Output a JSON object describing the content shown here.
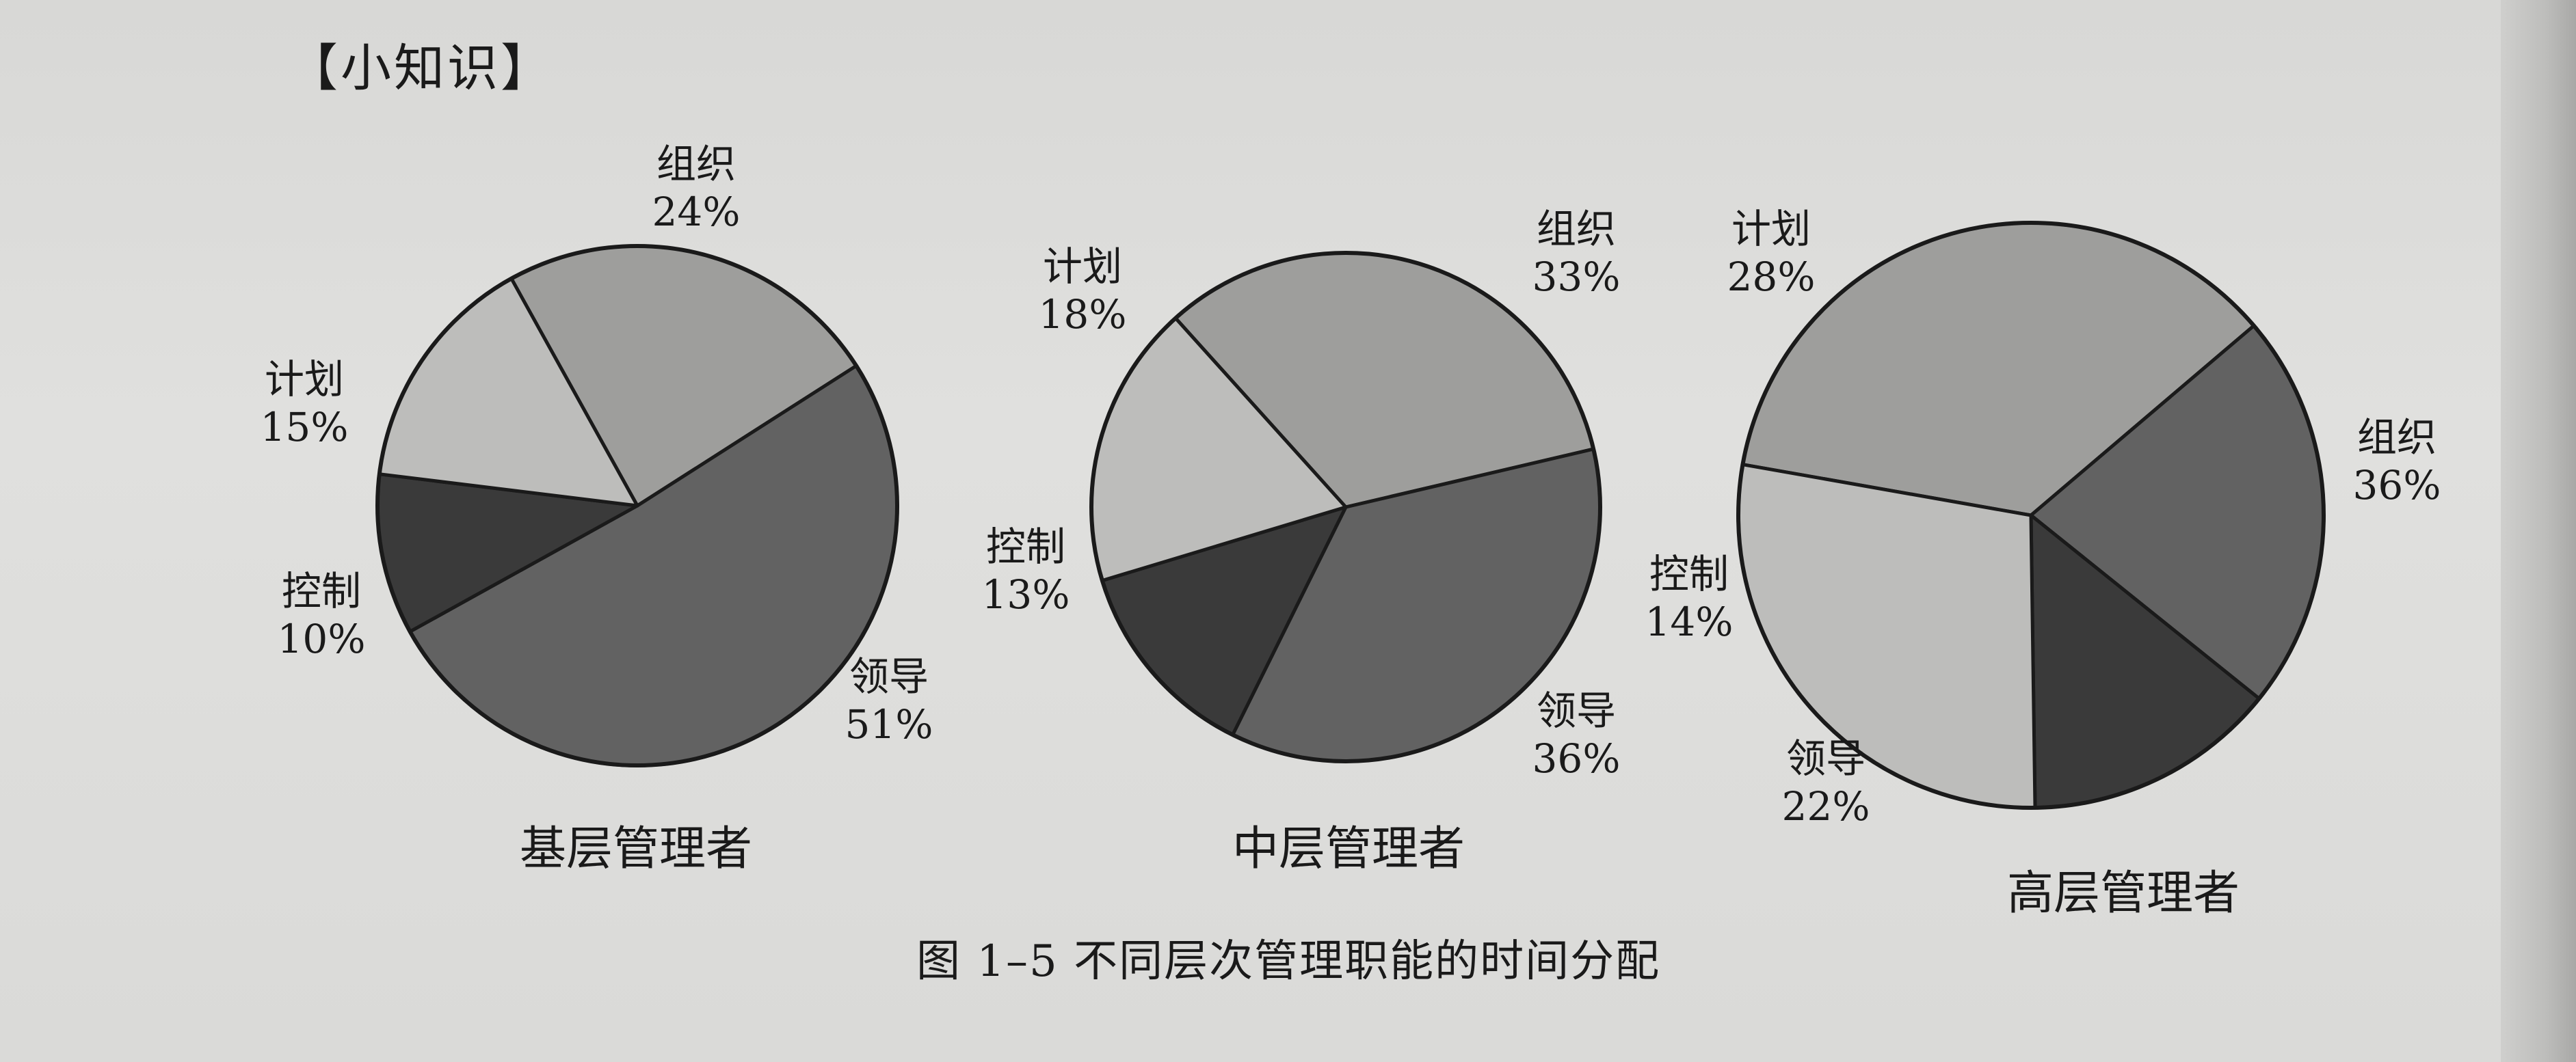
{
  "note_heading": "【小知识】",
  "caption": "图 1–5 不同层次管理职能的时间分配",
  "colors": {
    "组织": "#9e9e9c",
    "计划": "#bdbdbb",
    "控制": "#3a3a3a",
    "领导": "#626262"
  },
  "chart_data": [
    {
      "type": "pie",
      "title": "基层管理者",
      "slices": [
        {
          "label": "组织",
          "percent": "24%",
          "value": 24
        },
        {
          "label": "领导",
          "percent": "51%",
          "value": 51
        },
        {
          "label": "控制",
          "percent": "10%",
          "value": 10
        },
        {
          "label": "计划",
          "percent": "15%",
          "value": 15
        }
      ]
    },
    {
      "type": "pie",
      "title": "中层管理者",
      "slices": [
        {
          "label": "组织",
          "percent": "33%",
          "value": 33
        },
        {
          "label": "领导",
          "percent": "36%",
          "value": 36
        },
        {
          "label": "控制",
          "percent": "13%",
          "value": 13
        },
        {
          "label": "计划",
          "percent": "18%",
          "value": 18
        }
      ]
    },
    {
      "type": "pie",
      "title": "高层管理者",
      "slices": [
        {
          "label": "组织",
          "percent": "36%",
          "value": 36
        },
        {
          "label": "领导",
          "percent": "22%",
          "value": 22
        },
        {
          "label": "控制",
          "percent": "14%",
          "value": 14
        },
        {
          "label": "计划",
          "percent": "28%",
          "value": 28
        }
      ]
    }
  ]
}
